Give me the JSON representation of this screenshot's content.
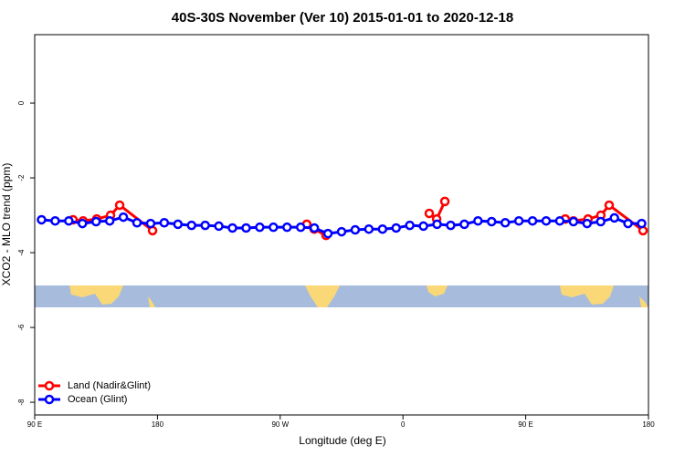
{
  "chart_data": {
    "type": "line",
    "title": "40S-30S November (Ver 10)   2015-01-01 to 2020-12-18",
    "xlabel": "Longitude (deg E)",
    "ylabel": "XCO2 - MLO trend (ppm)",
    "xlim": [
      90,
      540
    ],
    "ylim": [
      -8.34,
      1.83
    ],
    "xticks": [
      {
        "value": 90,
        "label": "90 E"
      },
      {
        "value": 180,
        "label": "180"
      },
      {
        "value": 270,
        "label": "90 W"
      },
      {
        "value": 360,
        "label": "0"
      },
      {
        "value": 450,
        "label": "90 E"
      },
      {
        "value": 540,
        "label": "180"
      }
    ],
    "yticks": [
      0,
      -2,
      -4,
      -6,
      -8
    ],
    "legend": "bottom-left",
    "series": [
      {
        "name": "Land (Nadir&Glint)",
        "color": "#ff0000",
        "x": [
          118.1,
          125.5,
          135.5,
          145.6,
          152.3,
          176.4,
          230,
          289.5,
          294.9,
          303.6,
          340,
          379.3,
          384.7,
          390.7,
          440,
          479,
          485,
          495.7,
          505.1,
          511.2,
          536
        ],
        "values": [
          -3.12,
          -3.15,
          -3.1,
          -3.0,
          -2.73,
          -3.41,
          null,
          -3.24,
          -3.37,
          -3.54,
          null,
          -2.95,
          -3.1,
          -2.63,
          null,
          -3.1,
          -3.15,
          -3.1,
          -3.0,
          -2.73,
          -3.41
        ]
      },
      {
        "name": "Ocean (Glint)",
        "color": "#0000ff",
        "x": [
          95,
          105,
          115,
          125,
          135,
          145,
          155,
          165,
          175,
          185,
          195,
          205,
          215,
          225,
          235,
          245,
          255,
          265,
          275,
          285,
          295,
          305,
          315,
          325,
          335,
          345,
          355,
          365,
          375,
          385,
          395,
          405,
          415,
          425,
          435,
          445,
          455,
          465,
          475,
          485,
          495,
          505,
          515,
          525,
          535
        ],
        "values": [
          -3.12,
          -3.15,
          -3.15,
          -3.22,
          -3.17,
          -3.15,
          -3.05,
          -3.2,
          -3.22,
          -3.2,
          -3.24,
          -3.27,
          -3.27,
          -3.29,
          -3.34,
          -3.34,
          -3.32,
          -3.32,
          -3.32,
          -3.32,
          -3.34,
          -3.49,
          -3.44,
          -3.39,
          -3.37,
          -3.37,
          -3.34,
          -3.27,
          -3.29,
          -3.24,
          -3.27,
          -3.24,
          -3.15,
          -3.17,
          -3.2,
          -3.15,
          -3.15,
          -3.15,
          -3.15,
          -3.17,
          -3.22,
          -3.17,
          -3.07,
          -3.22,
          -3.22
        ]
      }
    ]
  }
}
